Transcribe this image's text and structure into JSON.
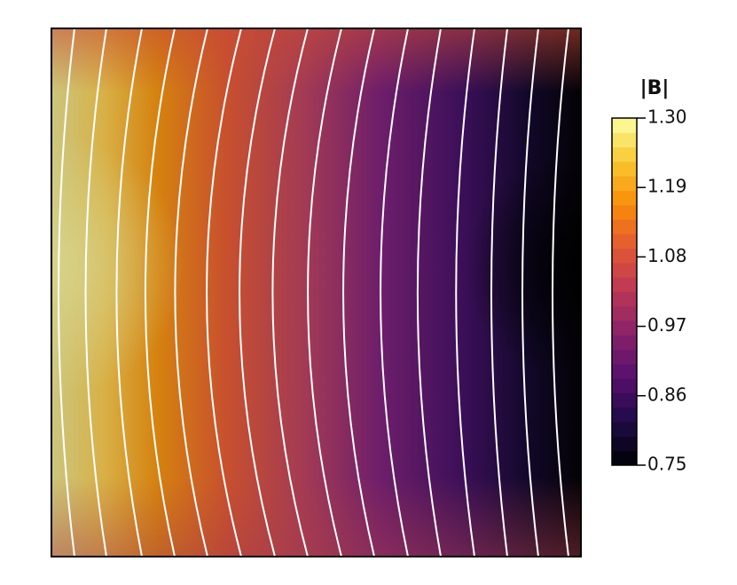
{
  "chart_data": {
    "type": "contour",
    "colorbar_title": "|B|",
    "colormap": "inferno",
    "clim": [
      0.75,
      1.3
    ],
    "colorbar_ticks": [
      0.75,
      0.86,
      0.97,
      1.08,
      1.19,
      {
        "value": 1.3,
        "label": "1.30"
      }
    ]
  }
}
